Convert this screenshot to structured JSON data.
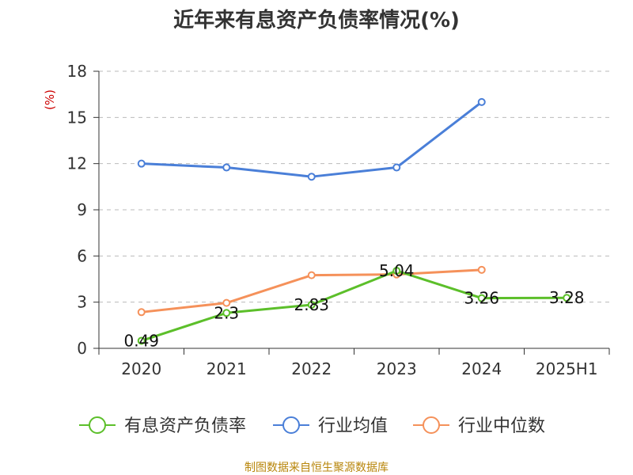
{
  "chart_data": {
    "type": "line",
    "title": "近年来有息资产负债率情况(%)",
    "ylabel": "(%)",
    "xlabel": "",
    "categories": [
      "2020",
      "2021",
      "2022",
      "2023",
      "2024",
      "2025H1"
    ],
    "ylim": [
      0,
      18
    ],
    "yticks": [
      0,
      3,
      6,
      9,
      12,
      15,
      18
    ],
    "grid": true,
    "legend_position": "bottom",
    "series": [
      {
        "name": "有息资产负债率",
        "color": "#5cbf2a",
        "values": [
          0.49,
          2.3,
          2.83,
          5.04,
          3.26,
          3.28
        ],
        "labels": [
          "0.49",
          "2.3",
          "2.83",
          "5.04",
          "3.26",
          "3.28"
        ]
      },
      {
        "name": "行业均值",
        "color": "#4a7fd8",
        "values": [
          12.0,
          11.75,
          11.15,
          11.75,
          16.0,
          null
        ],
        "labels": []
      },
      {
        "name": "行业中位数",
        "color": "#f5915a",
        "values": [
          2.35,
          2.95,
          4.75,
          4.8,
          5.1,
          null
        ],
        "labels": []
      }
    ],
    "source": "制图数据来自恒生聚源数据库"
  }
}
